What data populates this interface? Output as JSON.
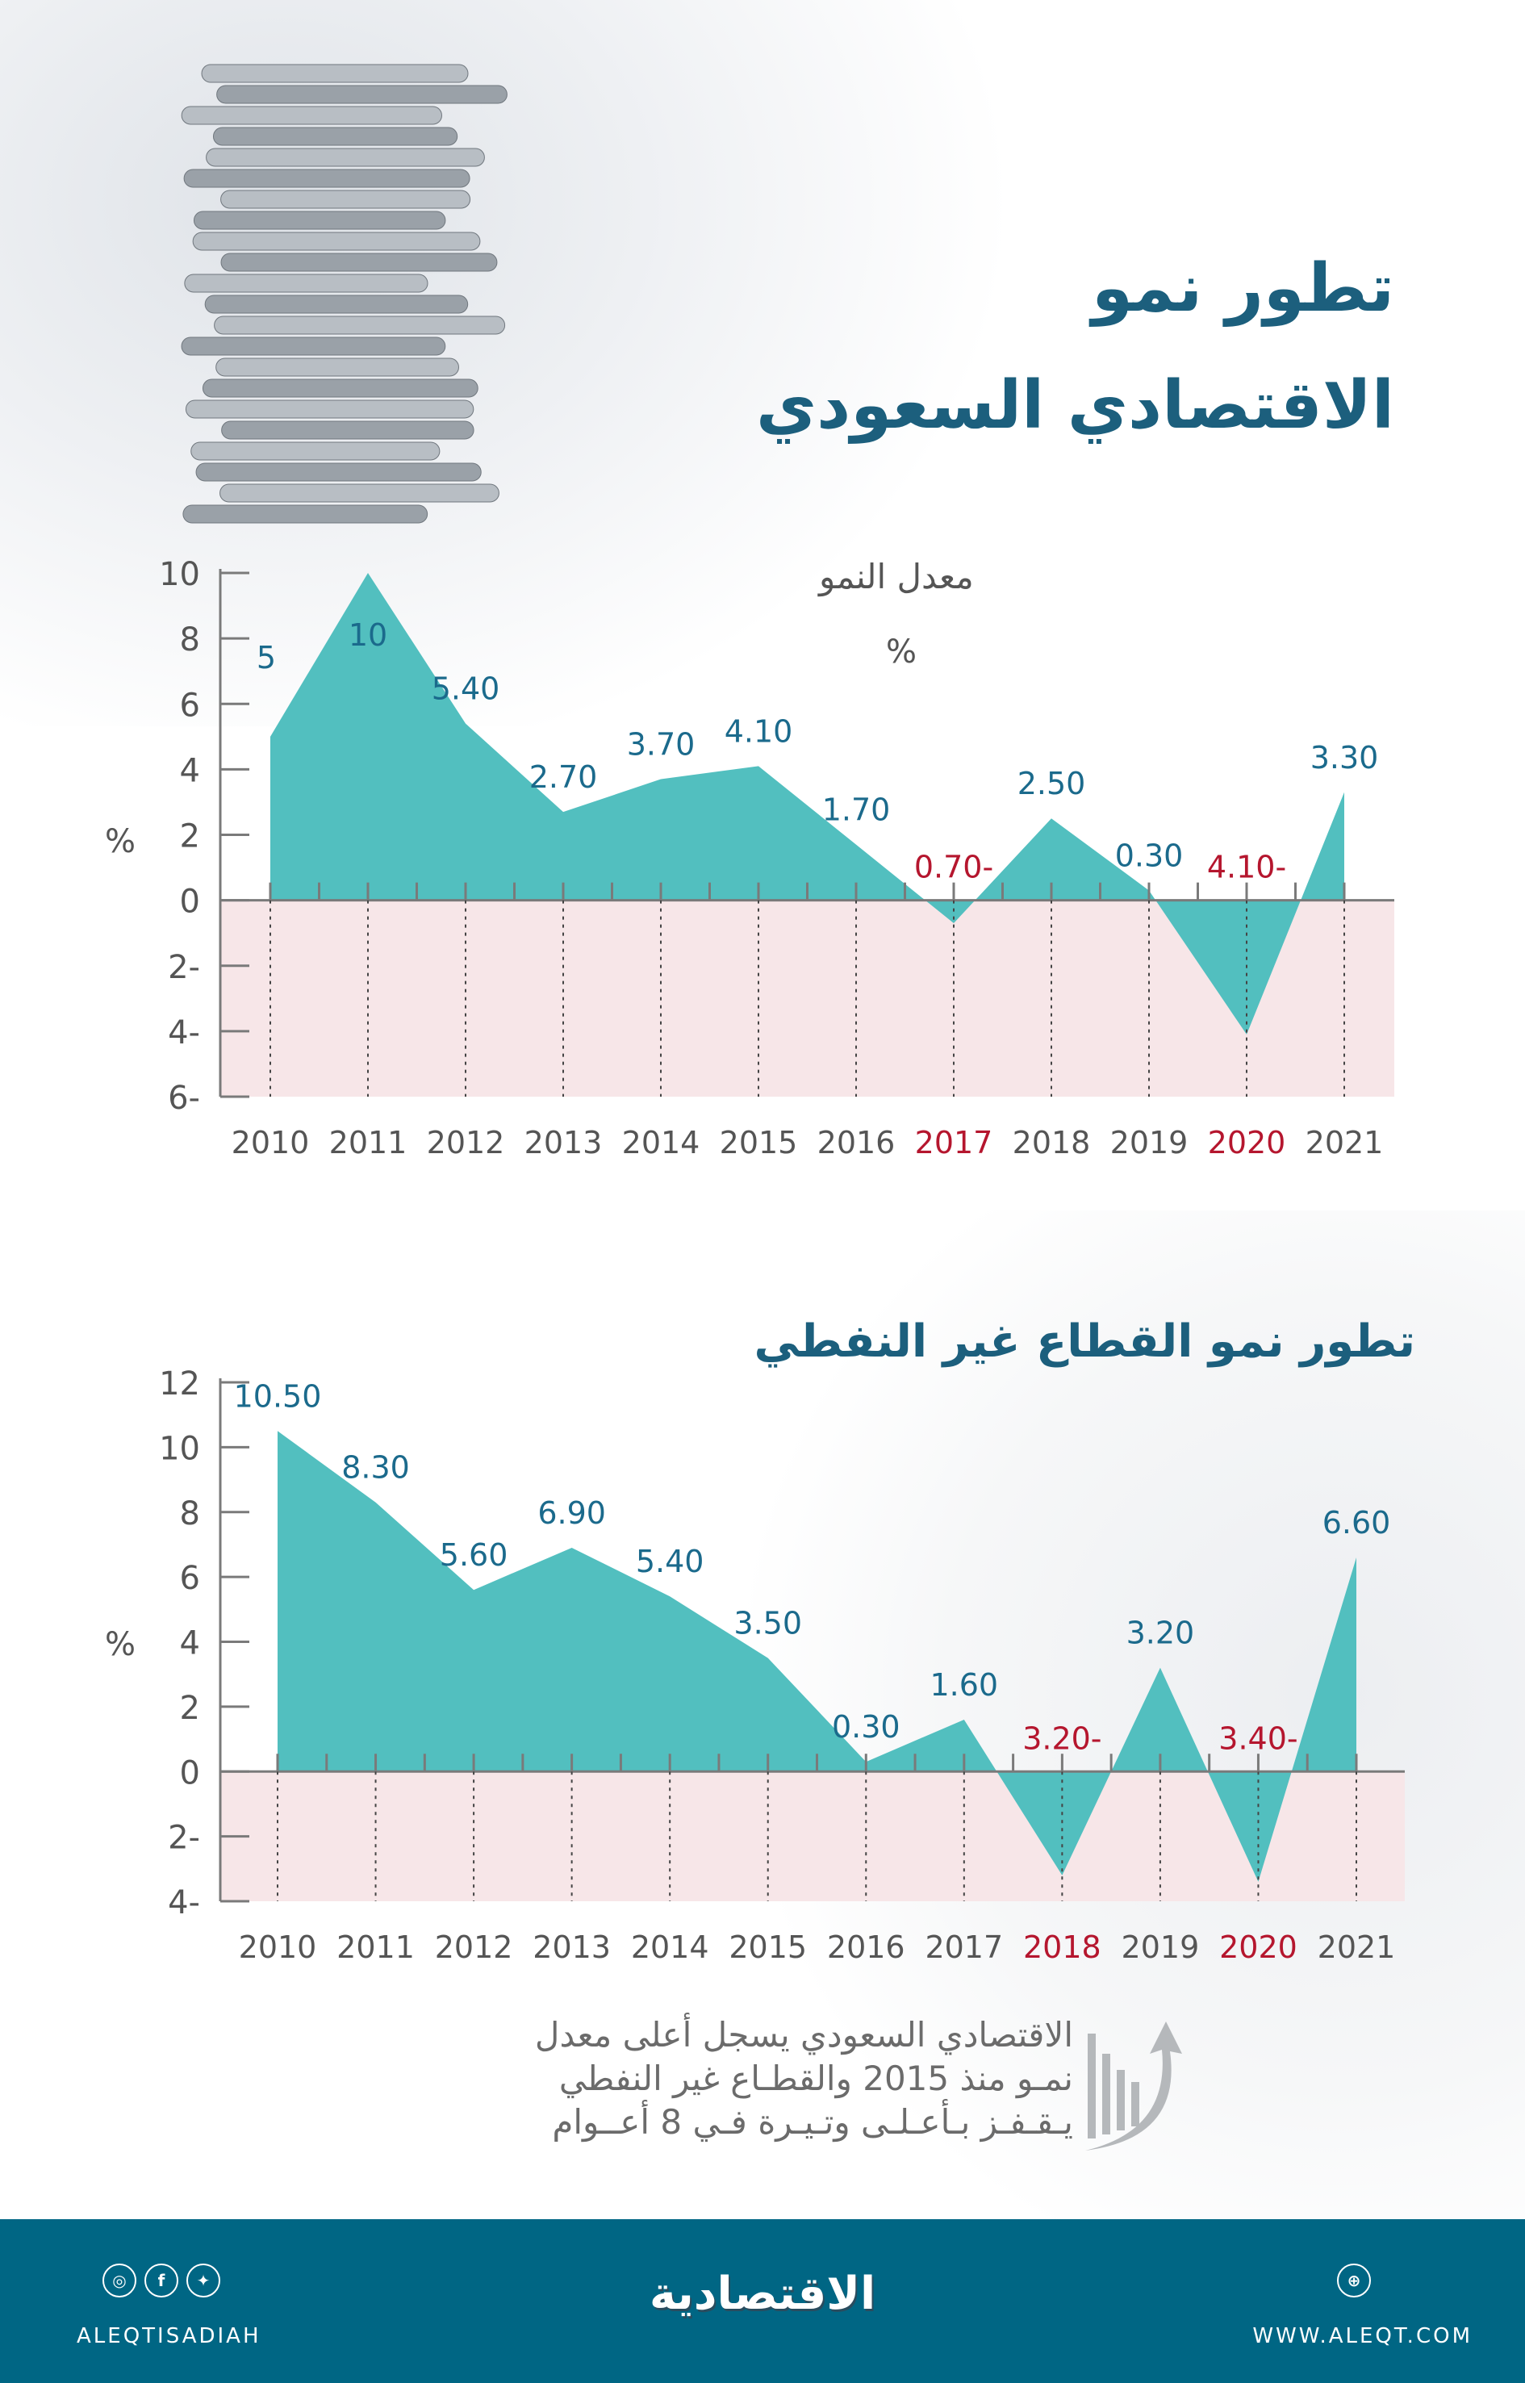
{
  "title": {
    "line1": "تطور نمو",
    "line2": "الاقتصادي السعودي"
  },
  "colors": {
    "area": "#52bfbf",
    "negative_band": "#f7e6e8",
    "label": "#1b6a8c",
    "negative_label": "#b5162e",
    "axis": "#7a7a7a",
    "title": "#1c5f7d",
    "footer": "#006684"
  },
  "chart_data": [
    {
      "type": "area",
      "title": "",
      "subtitle": "معدل النمو",
      "unit_label": "%",
      "ylabel": "%",
      "x": [
        "2010",
        "2011",
        "2012",
        "2013",
        "2014",
        "2015",
        "2016",
        "2017",
        "2018",
        "2019",
        "2020",
        "2021"
      ],
      "values": [
        5,
        10,
        5.4,
        2.7,
        3.7,
        4.1,
        1.7,
        -0.7,
        2.5,
        0.3,
        -4.1,
        3.3
      ],
      "data_labels": [
        "5",
        "10",
        "5.40",
        "2.70",
        "3.70",
        "4.10",
        "1.70",
        "0.70-",
        "2.50",
        "0.30",
        "4.10-",
        "3.30"
      ],
      "highlighted_years": [
        "2017",
        "2020"
      ],
      "ylim": [
        -6,
        10
      ],
      "yticks": [
        "10",
        "8",
        "6",
        "4",
        "2",
        "0",
        "2-",
        "4-",
        "6-"
      ],
      "ytick_values": [
        10,
        8,
        6,
        4,
        2,
        0,
        -2,
        -4,
        -6
      ],
      "grid": false
    },
    {
      "type": "area",
      "title": "تطور نمو القطاع غير النفطي",
      "ylabel": "%",
      "x": [
        "2010",
        "2011",
        "2012",
        "2013",
        "2014",
        "2015",
        "2016",
        "2017",
        "2018",
        "2019",
        "2020",
        "2021"
      ],
      "values": [
        10.5,
        8.3,
        5.6,
        6.9,
        5.4,
        3.5,
        0.3,
        1.6,
        -3.2,
        3.2,
        -3.4,
        6.6
      ],
      "data_labels": [
        "10.50",
        "8.30",
        "5.60",
        "6.90",
        "5.40",
        "3.50",
        "0.30",
        "1.60",
        "3.20-",
        "3.20",
        "3.40-",
        "6.60"
      ],
      "highlighted_years": [
        "2018",
        "2020"
      ],
      "ylim": [
        -4,
        12
      ],
      "yticks": [
        "12",
        "10",
        "8",
        "6",
        "4",
        "2",
        "0",
        "2-",
        "4-"
      ],
      "ytick_values": [
        12,
        10,
        8,
        6,
        4,
        2,
        0,
        -2,
        -4
      ],
      "grid": false
    }
  ],
  "note": {
    "line1": "الاقتصادي السعودي يسجل أعلى معدل",
    "line2": "نمـو منذ 2015 والقطـاع غير النفطي",
    "line3": "يـقـفـز بـأعـلـى وتـيـرة فـي 8 أعــوام"
  },
  "footer": {
    "logo": "الاقتصادية",
    "handle": "ALEQTISADIAH",
    "website": "WWW.ALEQT.COM",
    "social_icons": [
      "instagram-icon",
      "facebook-icon",
      "twitter-icon"
    ],
    "web_icon": "globe-icon"
  }
}
